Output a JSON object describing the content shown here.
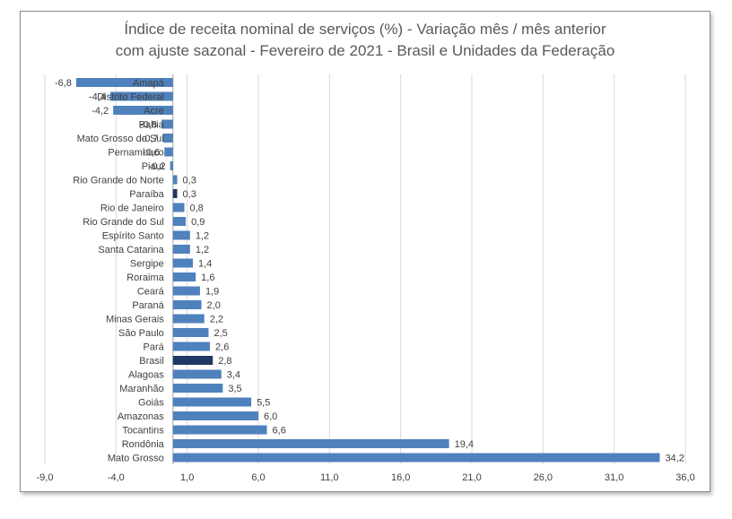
{
  "chart_data": {
    "type": "bar",
    "orientation": "horizontal",
    "title_line1": "Índice de receita nominal de serviços (%) - Variação mês / mês anterior",
    "title_line2": "com ajuste sazonal - Fevereiro de 2021 - Brasil e Unidades da Federação",
    "categories": [
      "Amapá",
      "Distrito Federal",
      "Acre",
      "Bahia",
      "Mato Grosso do Sul",
      "Pernambuco",
      "Piauí",
      "Rio Grande do Norte",
      "Paraíba",
      "Rio de Janeiro",
      "Rio Grande do Sul",
      "Espírito Santo",
      "Santa Catarina",
      "Sergipe",
      "Roraima",
      "Ceará",
      "Paraná",
      "Minas Gerais",
      "São Paulo",
      "Pará",
      "Brasil",
      "Alagoas",
      "Maranhão",
      "Goiás",
      "Amazonas",
      "Tocantins",
      "Rondônia",
      "Mato Grosso"
    ],
    "values": [
      -6.8,
      -4.4,
      -4.2,
      -0.8,
      -0.7,
      -0.6,
      -0.2,
      0.3,
      0.3,
      0.8,
      0.9,
      1.2,
      1.2,
      1.4,
      1.6,
      1.9,
      2.0,
      2.2,
      2.5,
      2.6,
      2.8,
      3.4,
      3.5,
      5.5,
      6.0,
      6.6,
      19.4,
      34.2
    ],
    "value_labels": [
      "-6,8",
      "-4,4",
      "-4,2",
      "-0,8",
      "-0,7",
      "-0,6",
      "-0,2",
      "0,3",
      "0,3",
      "0,8",
      "0,9",
      "1,2",
      "1,2",
      "1,4",
      "1,6",
      "1,9",
      "2,0",
      "2,2",
      "2,5",
      "2,6",
      "2,8",
      "3,4",
      "3,5",
      "5,5",
      "6,0",
      "6,6",
      "19,4",
      "34,2"
    ],
    "xlim": [
      -9.0,
      36.0
    ],
    "x_ticks": [
      -9.0,
      -4.0,
      1.0,
      6.0,
      11.0,
      16.0,
      21.0,
      26.0,
      31.0,
      36.0
    ],
    "x_tick_labels": [
      "-9,0",
      "-4,0",
      "1,0",
      "6,0",
      "11,0",
      "16,0",
      "21,0",
      "26,0",
      "31,0",
      "36,0"
    ],
    "grid": "vertical",
    "colors": {
      "bar": "#4f81bd",
      "highlight": "#1f3864",
      "grid": "#d9d9d9",
      "text": "#404040"
    },
    "highlight_categories": [
      "Brasil",
      "Paraíba"
    ]
  }
}
